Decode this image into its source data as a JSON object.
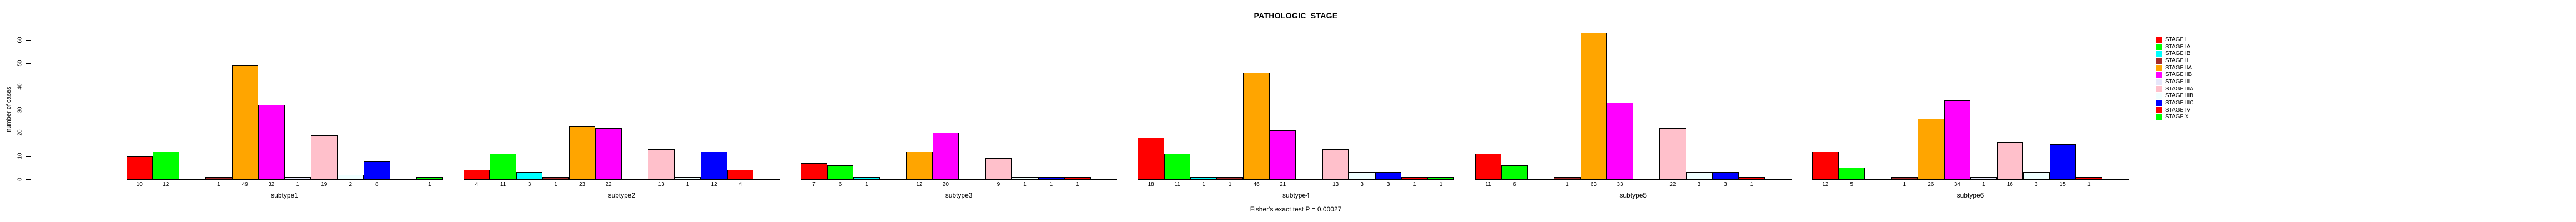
{
  "chart_data": {
    "type": "bar",
    "title": "PATHOLOGIC_STAGE",
    "ylabel": "number of cases",
    "footer": "Fisher's exact test P = 0.00027",
    "ylim": [
      0,
      60
    ],
    "yticks": [
      0,
      10,
      20,
      30,
      40,
      50,
      60
    ],
    "grid": false,
    "legend_position": "right",
    "categories": [
      "STAGE I",
      "STAGE IA",
      "STAGE IB",
      "STAGE II",
      "STAGE IIA",
      "STAGE IIB",
      "STAGE III",
      "STAGE IIIA",
      "STAGE IIIB",
      "STAGE IIIC",
      "STAGE IV",
      "STAGE X"
    ],
    "stages": [
      {
        "label": "STAGE I",
        "color": "#FF0000"
      },
      {
        "label": "STAGE IA",
        "color": "#00FF00"
      },
      {
        "label": "STAGE IB",
        "color": "#00FFFF"
      },
      {
        "label": "STAGE II",
        "color": "#A52A2A"
      },
      {
        "label": "STAGE IIA",
        "color": "#FFA500"
      },
      {
        "label": "STAGE IIB",
        "color": "#FF00FF"
      },
      {
        "label": "STAGE III",
        "color": "#E6E6FA"
      },
      {
        "label": "STAGE IIIA",
        "color": "#FFC0CB"
      },
      {
        "label": "STAGE IIIB",
        "color": "#F0FFFF"
      },
      {
        "label": "STAGE IIIC",
        "color": "#0000FF"
      },
      {
        "label": "STAGE IV",
        "color": "#FF0000"
      },
      {
        "label": "STAGE X",
        "color": "#00FF00"
      }
    ],
    "panels": [
      {
        "label": "subtype1",
        "values": [
          10,
          12,
          0,
          1,
          49,
          32,
          1,
          19,
          2,
          8,
          0,
          1
        ]
      },
      {
        "label": "subtype2",
        "values": [
          4,
          11,
          3,
          1,
          23,
          22,
          0,
          13,
          1,
          12,
          4,
          0
        ]
      },
      {
        "label": "subtype3",
        "values": [
          7,
          6,
          1,
          0,
          12,
          20,
          0,
          9,
          1,
          1,
          1,
          0
        ]
      },
      {
        "label": "subtype4",
        "values": [
          18,
          11,
          1,
          1,
          46,
          21,
          0,
          13,
          3,
          3,
          1,
          1
        ]
      },
      {
        "label": "subtype5",
        "values": [
          11,
          6,
          0,
          1,
          63,
          33,
          0,
          22,
          3,
          3,
          1,
          0
        ]
      },
      {
        "label": "subtype6",
        "values": [
          12,
          5,
          0,
          1,
          26,
          34,
          1,
          16,
          3,
          15,
          1,
          0
        ]
      }
    ]
  }
}
